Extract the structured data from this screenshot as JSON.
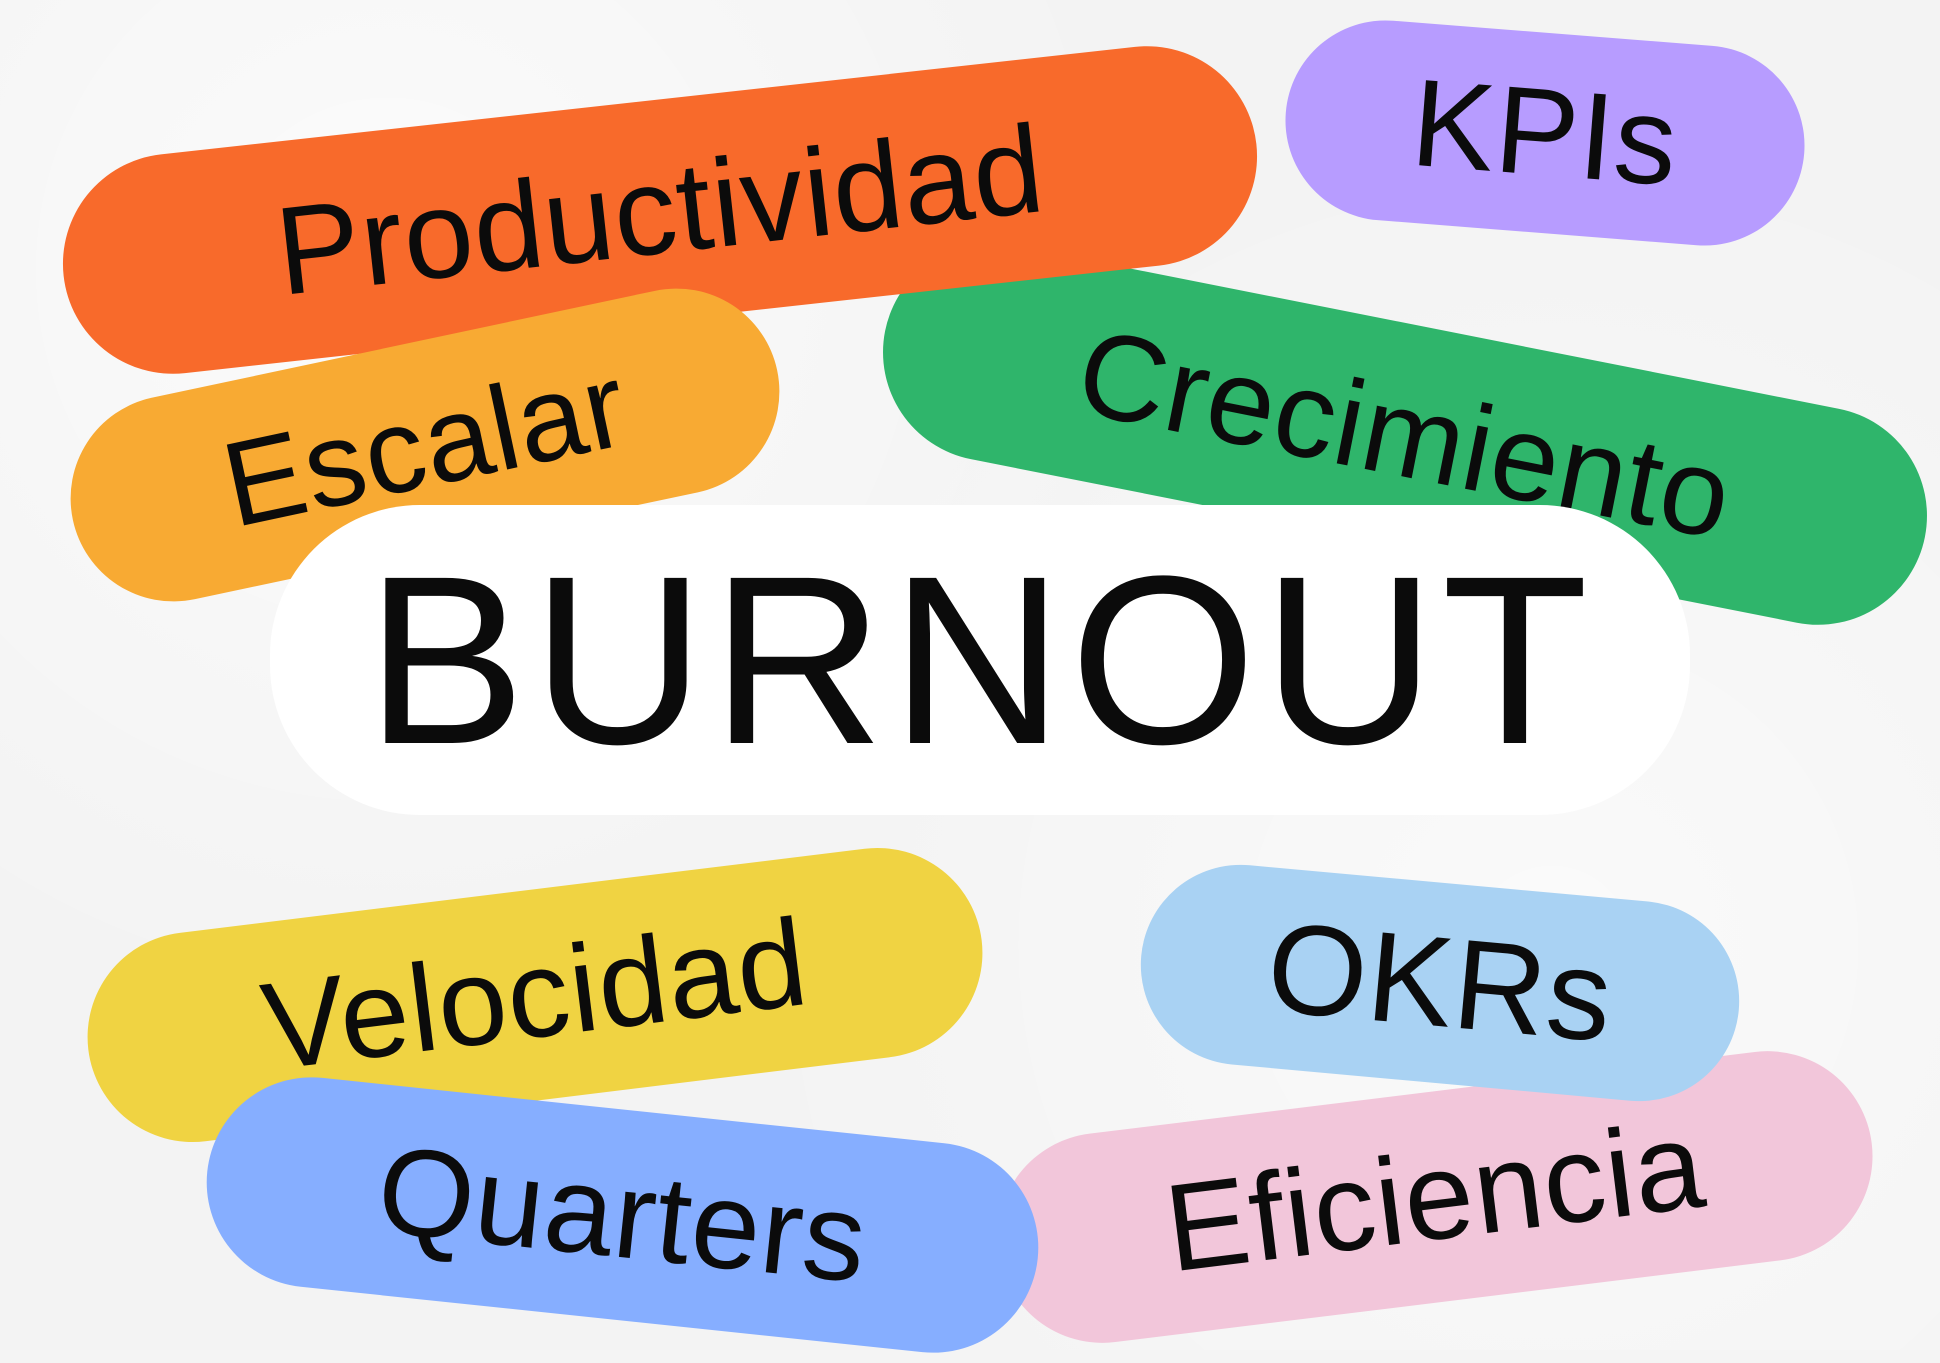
{
  "pills": [
    {
      "id": "productividad",
      "label": "Productividad",
      "color": "#F86A2B"
    },
    {
      "id": "kpis",
      "label": "KPIs",
      "color": "#B79CFF"
    },
    {
      "id": "escalar",
      "label": "Escalar",
      "color": "#F8AA33"
    },
    {
      "id": "crecimiento",
      "label": "Crecimiento",
      "color": "#2FB56B"
    },
    {
      "id": "burnout",
      "label": "BURNOUT",
      "color": "#FFFFFF"
    },
    {
      "id": "velocidad",
      "label": "Velocidad",
      "color": "#F0D342"
    },
    {
      "id": "okrs",
      "label": "OKRs",
      "color": "#A9D2F3"
    },
    {
      "id": "eficiencia",
      "label": "Eficiencia",
      "color": "#F2C6DA"
    },
    {
      "id": "quarters",
      "label": "Quarters",
      "color": "#86AEFF"
    }
  ]
}
